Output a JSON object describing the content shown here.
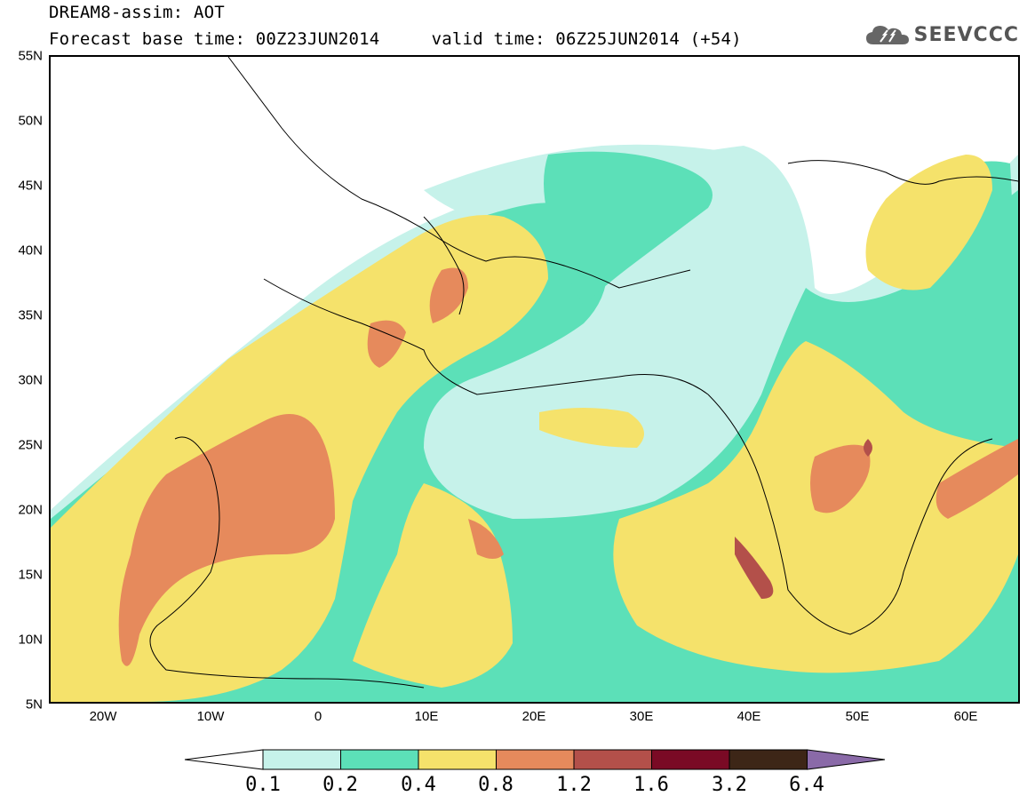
{
  "header": {
    "title_line1": "DREAM8-assim: AOT",
    "title_line2": "Forecast base time: 00Z23JUN2014     valid time: 06Z25JUN2014 (+54)",
    "brand": "SEEVCCC",
    "brand_icon": "cloud-icon"
  },
  "map": {
    "lat_labels": [
      "55N",
      "50N",
      "45N",
      "40N",
      "35N",
      "30N",
      "25N",
      "20N",
      "15N",
      "10N",
      "5N"
    ],
    "lon_labels": [
      "20W",
      "10W",
      "0",
      "10E",
      "20E",
      "30E",
      "40E",
      "50E",
      "60E"
    ],
    "lon_range": [
      -25,
      65
    ],
    "lat_range": [
      5,
      55
    ]
  },
  "legend": {
    "thresholds": [
      "0.1",
      "0.2",
      "0.4",
      "0.8",
      "1.2",
      "1.6",
      "3.2",
      "6.4"
    ],
    "colors": [
      "#c6f2ea",
      "#5ce0b8",
      "#f5e26b",
      "#e68a5c",
      "#b3504a",
      "#7a0a25",
      "#3d2617",
      "#8a6aa8"
    ],
    "under_color": "#ffffff"
  }
}
